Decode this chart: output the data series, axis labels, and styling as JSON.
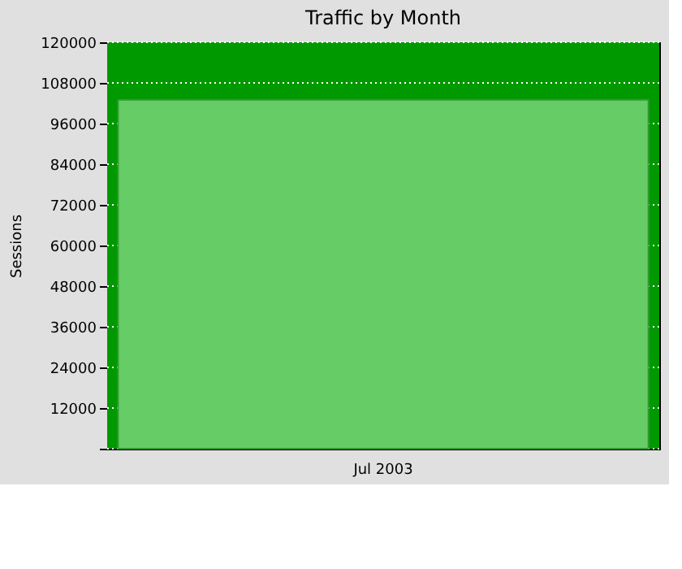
{
  "chart_data": {
    "type": "bar",
    "title": "Traffic by Month",
    "ylabel": "Sessions",
    "categories": [
      "Jul 2003"
    ],
    "series": [
      {
        "color": "#66cc66",
        "values": [
          103000
        ]
      }
    ],
    "ylim": [
      0,
      120000
    ],
    "yticks": [
      {
        "value": 0,
        "label": null
      },
      12000,
      24000,
      36000,
      48000,
      60000,
      72000,
      84000,
      96000,
      108000,
      120000
    ],
    "bands": [
      {
        "axis": "y",
        "from": 0,
        "to": 120000,
        "color": "#009900"
      }
    ],
    "grid": "y"
  }
}
